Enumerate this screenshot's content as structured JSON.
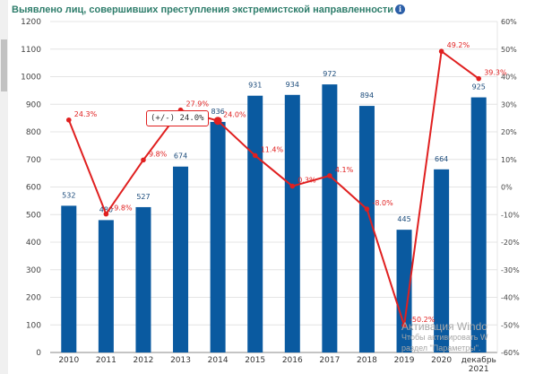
{
  "page": {
    "title": "Выявлено лиц, совершивших преступления экстремистской направленности",
    "info_icon": "info-icon"
  },
  "tooltip": {
    "text": "(+/-) 24.0%"
  },
  "watermark": {
    "title": "Активация Windo",
    "line1": "Чтобы активировать W",
    "line2": "раздел \"Параметры\"."
  },
  "chart_data": {
    "type": "bar",
    "categories": [
      "2010",
      "2011",
      "2012",
      "2013",
      "2014",
      "2015",
      "2016",
      "2017",
      "2018",
      "2019",
      "2020",
      "декабрь 2021"
    ],
    "series": [
      {
        "type": "bar",
        "axis": "left",
        "color": "#0a5aa0",
        "values": [
          532,
          480,
          527,
          674,
          836,
          931,
          934,
          972,
          894,
          445,
          664,
          925
        ],
        "labels": [
          "532",
          "480",
          "527",
          "674",
          "836",
          "931",
          "934",
          "972",
          "894",
          "445",
          "664",
          "925"
        ]
      },
      {
        "type": "line",
        "axis": "right",
        "color": "#e02020",
        "values": [
          24.3,
          -9.8,
          9.8,
          27.9,
          24.0,
          11.4,
          0.3,
          4.1,
          -8.0,
          -50.2,
          49.2,
          39.3
        ],
        "labels": [
          "24.3%",
          "-9.8%",
          "9.8%",
          "27.9%",
          "24.0%",
          "11.4%",
          "0.3%",
          "4.1%",
          "-8.0%",
          "-50.2%",
          "49.2%",
          "39.3%"
        ]
      }
    ],
    "y_left": {
      "min": 0,
      "max": 1200,
      "ticks": [
        "0",
        "100",
        "200",
        "300",
        "400",
        "500",
        "600",
        "700",
        "800",
        "900",
        "1000",
        "1100",
        "1200"
      ]
    },
    "y_right": {
      "min": -60,
      "max": 60,
      "ticks": [
        "-60%",
        "-50%",
        "-40%",
        "-30%",
        "-20%",
        "-10%",
        "0%",
        "10%",
        "20%",
        "30%",
        "40%",
        "50%",
        "60%"
      ]
    },
    "grid": "horizontal",
    "legend": "none",
    "highlighted_index": 4
  }
}
